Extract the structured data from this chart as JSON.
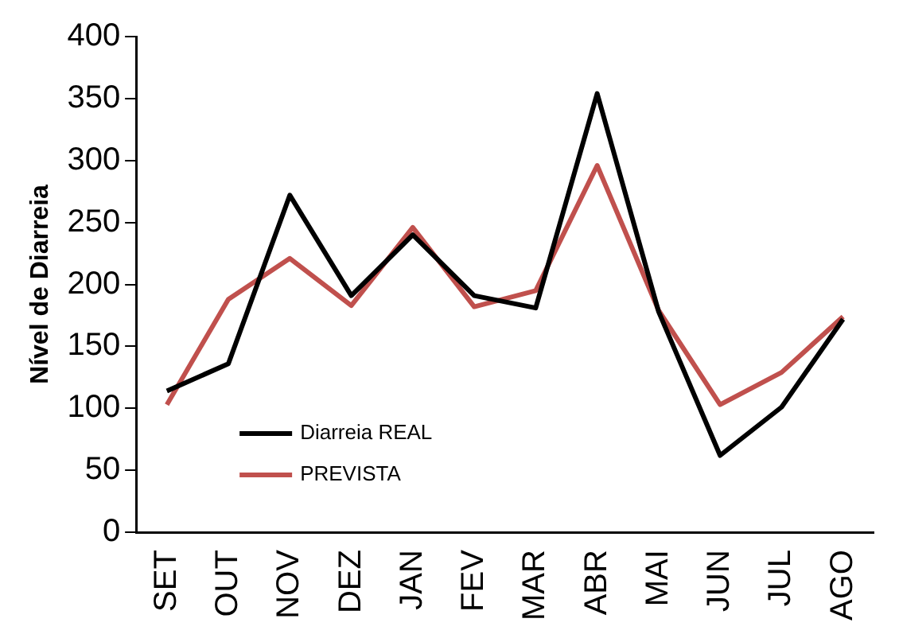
{
  "chart_data": {
    "type": "line",
    "ylabel": "Nível de Diarreia",
    "categories": [
      "SET",
      "OUT",
      "NOV",
      "DEZ",
      "JAN",
      "FEV",
      "MAR",
      "ABR",
      "MAI",
      "JUN",
      "JUL",
      "AGO"
    ],
    "series": [
      {
        "name": "Diarreia REAL",
        "color": "#000000",
        "values": [
          114,
          136,
          272,
          191,
          240,
          191,
          181,
          354,
          178,
          62,
          101,
          172
        ]
      },
      {
        "name": "PREVISTA",
        "color": "#c0504d",
        "values": [
          103,
          188,
          221,
          183,
          246,
          182,
          195,
          296,
          179,
          103,
          129,
          174
        ]
      }
    ],
    "ylim": [
      0,
      400
    ],
    "yticks": [
      0,
      50,
      100,
      150,
      200,
      250,
      300,
      350,
      400
    ],
    "grid": false,
    "legend": "bottom left",
    "marker": "none",
    "line_style": "solid"
  }
}
